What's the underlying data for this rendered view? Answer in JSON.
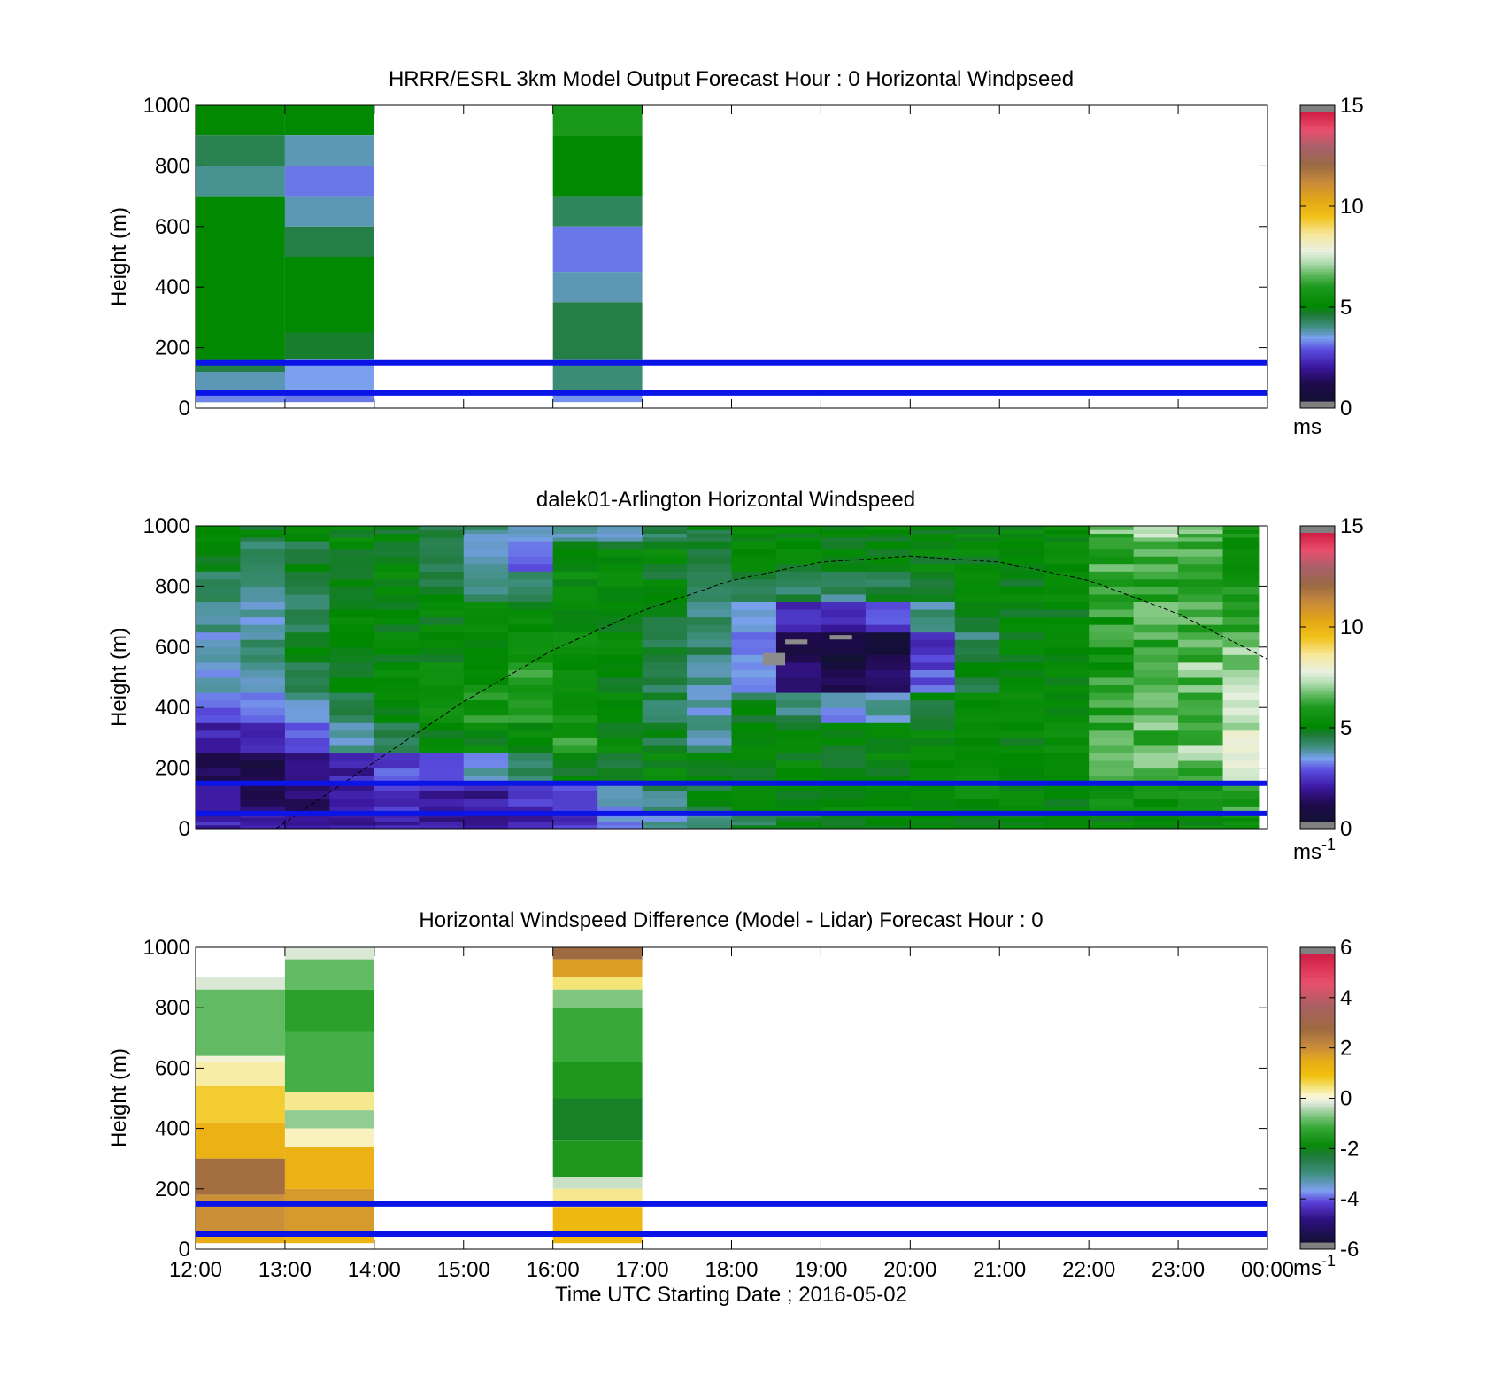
{
  "chart_data": [
    {
      "type": "heatmap",
      "title": "HRRR/ESRL 3km Model Output   Forecast Hour : 0 Horizontal Windpseed",
      "ylabel": "Height (m)",
      "xlabel": "",
      "ylim": [
        0,
        1000
      ],
      "yticks": [
        0,
        200,
        400,
        600,
        800,
        1000
      ],
      "xlim": [
        12,
        24
      ],
      "xticks": [
        12,
        13,
        14,
        15,
        16,
        17,
        18,
        19,
        20,
        21,
        22,
        23,
        24
      ],
      "show_xtick_labels": false,
      "colorbar": {
        "min": 0,
        "max": 15,
        "ticks": [
          "0",
          "5",
          "10",
          "15"
        ],
        "unit": "ms",
        "unit_sup": "",
        "palette": "speed"
      },
      "reference_lines": [
        150,
        50
      ],
      "columns": [
        {
          "x_start": 12,
          "x_end": 13,
          "cells": [
            {
              "y0": 900,
              "y1": 1000,
              "v": 5.0
            },
            {
              "y0": 800,
              "y1": 900,
              "v": 4.3
            },
            {
              "y0": 700,
              "y1": 800,
              "v": 3.8
            },
            {
              "y0": 20,
              "y1": 700,
              "v": 5.0
            },
            {
              "y0": 120,
              "y1": 160,
              "v": 4.4
            },
            {
              "y0": 60,
              "y1": 120,
              "v": 3.6
            },
            {
              "y0": 20,
              "y1": 60,
              "v": 3.1
            }
          ]
        },
        {
          "x_start": 13,
          "x_end": 14,
          "cells": [
            {
              "y0": 900,
              "y1": 1000,
              "v": 5.0
            },
            {
              "y0": 800,
              "y1": 900,
              "v": 3.6
            },
            {
              "y0": 700,
              "y1": 800,
              "v": 3.0
            },
            {
              "y0": 600,
              "y1": 700,
              "v": 3.6
            },
            {
              "y0": 500,
              "y1": 600,
              "v": 4.4
            },
            {
              "y0": 250,
              "y1": 500,
              "v": 5.0
            },
            {
              "y0": 160,
              "y1": 250,
              "v": 4.6
            },
            {
              "y0": 60,
              "y1": 160,
              "v": 3.3
            },
            {
              "y0": 20,
              "y1": 60,
              "v": 3.0
            }
          ]
        },
        {
          "x_start": 16,
          "x_end": 17,
          "cells": [
            {
              "y0": 900,
              "y1": 1000,
              "v": 5.8
            },
            {
              "y0": 800,
              "y1": 900,
              "v": 5.0
            },
            {
              "y0": 700,
              "y1": 800,
              "v": 5.0
            },
            {
              "y0": 600,
              "y1": 700,
              "v": 4.2
            },
            {
              "y0": 450,
              "y1": 600,
              "v": 3.0
            },
            {
              "y0": 350,
              "y1": 450,
              "v": 3.6
            },
            {
              "y0": 160,
              "y1": 350,
              "v": 4.4
            },
            {
              "y0": 60,
              "y1": 160,
              "v": 4.0
            },
            {
              "y0": 20,
              "y1": 60,
              "v": 3.2
            }
          ]
        }
      ]
    },
    {
      "type": "heatmap",
      "title": "dalek01-Arlington  Horizontal Windspeed",
      "ylabel": "Height (m)",
      "xlabel": "",
      "ylim": [
        0,
        1000
      ],
      "yticks": [
        0,
        200,
        400,
        600,
        800,
        1000
      ],
      "xlim": [
        12,
        24
      ],
      "xticks": [
        12,
        13,
        14,
        15,
        16,
        17,
        18,
        19,
        20,
        21,
        22,
        23,
        24
      ],
      "show_xtick_labels": false,
      "colorbar": {
        "min": 0,
        "max": 15,
        "ticks": [
          "0",
          "5",
          "10",
          "15"
        ],
        "unit": "ms",
        "unit_sup": "-1",
        "palette": "speed"
      },
      "reference_lines": [
        150,
        50
      ],
      "data_end_x": 23.9,
      "grid_rows": [
        0,
        50,
        150,
        250,
        350,
        450,
        550,
        650,
        750,
        850,
        950,
        1000
      ],
      "grid_cols": [
        12,
        12.5,
        13,
        13.5,
        14,
        14.5,
        15,
        15.5,
        16,
        16.5,
        17,
        17.5,
        18,
        18.5,
        19,
        19.5,
        20,
        20.5,
        21,
        21.5,
        22,
        22.5,
        23,
        23.5,
        23.9
      ],
      "grid_values": [
        [
          2.0,
          1.8,
          1.6,
          1.7,
          2.0,
          1.7,
          1.4,
          1.8,
          2.3,
          3.1,
          3.6,
          4.0,
          4.4,
          4.6,
          4.8,
          4.9,
          4.8,
          4.7,
          4.8,
          5.0,
          5.0,
          5.2,
          5.0,
          5.4
        ],
        [
          1.5,
          1.2,
          1.4,
          1.8,
          2.2,
          2.0,
          1.8,
          2.2,
          2.7,
          3.4,
          4.1,
          4.7,
          4.8,
          4.9,
          5.0,
          5.0,
          5.0,
          5.1,
          5.0,
          5.0,
          5.4,
          5.6,
          5.6,
          6.2
        ],
        [
          1.0,
          0.8,
          1.2,
          1.9,
          2.6,
          3.0,
          3.4,
          4.2,
          4.6,
          4.8,
          5.0,
          5.0,
          5.0,
          5.0,
          5.0,
          5.0,
          5.0,
          5.0,
          5.0,
          5.0,
          6.0,
          6.3,
          6.6,
          7.2
        ],
        [
          2.0,
          1.8,
          2.6,
          3.6,
          4.4,
          4.8,
          5.0,
          5.6,
          5.8,
          5.0,
          4.6,
          3.8,
          4.8,
          5.0,
          5.0,
          5.0,
          5.0,
          5.0,
          5.0,
          5.2,
          6.1,
          6.4,
          6.8,
          7.3
        ],
        [
          3.0,
          3.2,
          3.8,
          4.2,
          4.8,
          5.2,
          5.8,
          6.0,
          5.9,
          5.2,
          4.4,
          3.6,
          4.6,
          4.0,
          3.4,
          3.6,
          4.6,
          5.0,
          5.0,
          5.0,
          6.0,
          6.3,
          6.8,
          7.2
        ],
        [
          3.4,
          3.6,
          4.4,
          4.8,
          5.0,
          5.4,
          5.6,
          5.8,
          5.6,
          5.0,
          4.4,
          3.8,
          3.4,
          1.2,
          0.8,
          1.0,
          2.6,
          4.6,
          5.0,
          5.0,
          5.8,
          6.2,
          6.7,
          7.0
        ],
        [
          3.6,
          3.8,
          4.6,
          5.0,
          5.0,
          5.0,
          5.2,
          5.4,
          5.2,
          5.0,
          4.6,
          4.2,
          3.2,
          0.7,
          0.4,
          0.6,
          2.2,
          4.2,
          5.0,
          5.0,
          5.6,
          6.1,
          6.5,
          6.6
        ],
        [
          4.0,
          3.4,
          4.4,
          5.0,
          5.0,
          5.0,
          5.0,
          5.2,
          5.2,
          5.0,
          4.6,
          4.0,
          3.4,
          2.0,
          1.8,
          2.4,
          3.8,
          4.6,
          5.0,
          5.0,
          5.8,
          6.2,
          6.4,
          6.4
        ],
        [
          4.4,
          3.8,
          4.4,
          5.0,
          5.0,
          4.6,
          4.0,
          4.4,
          5.2,
          5.2,
          4.8,
          4.4,
          4.6,
          4.2,
          4.0,
          4.4,
          4.8,
          5.0,
          5.0,
          5.0,
          6.0,
          6.3,
          6.2,
          6.1
        ],
        [
          4.6,
          4.0,
          4.6,
          5.0,
          5.0,
          4.0,
          3.4,
          3.0,
          4.8,
          5.0,
          5.0,
          4.8,
          5.0,
          5.0,
          5.0,
          5.0,
          5.0,
          5.0,
          5.0,
          5.0,
          6.2,
          6.6,
          6.2,
          5.8
        ],
        [
          4.8,
          4.8,
          5.0,
          5.0,
          4.8,
          4.4,
          3.8,
          3.2,
          3.6,
          3.4,
          4.2,
          4.6,
          5.0,
          5.0,
          5.0,
          5.0,
          5.0,
          5.0,
          5.0,
          5.0,
          6.6,
          7.0,
          6.4,
          6.0
        ]
      ],
      "missing_cells": [
        {
          "x0": 18.35,
          "x1": 18.6,
          "y0": 540,
          "y1": 580
        },
        {
          "x0": 18.6,
          "x1": 18.85,
          "y0": 610,
          "y1": 625
        },
        {
          "x0": 19.1,
          "x1": 19.35,
          "y0": 625,
          "y1": 640
        }
      ],
      "curve": {
        "points": [
          [
            12.9,
            0
          ],
          [
            13.5,
            120
          ],
          [
            14,
            220
          ],
          [
            15,
            420
          ],
          [
            16,
            590
          ],
          [
            17,
            720
          ],
          [
            18,
            820
          ],
          [
            19,
            880
          ],
          [
            20,
            900
          ],
          [
            21,
            880
          ],
          [
            22,
            820
          ],
          [
            23,
            710
          ],
          [
            24,
            560
          ]
        ]
      }
    },
    {
      "type": "heatmap",
      "title": "Horizontal Windspeed Difference (Model - Lidar) Forecast Hour : 0",
      "ylabel": "Height (m)",
      "xlabel": "Time UTC  Starting Date ; 2016-05-02",
      "ylim": [
        0,
        1000
      ],
      "yticks": [
        0,
        200,
        400,
        600,
        800,
        1000
      ],
      "xlim": [
        12,
        24
      ],
      "xticks": [
        12,
        13,
        14,
        15,
        16,
        17,
        18,
        19,
        20,
        21,
        22,
        23,
        24
      ],
      "xtick_labels": [
        "12:00",
        "13:00",
        "14:00",
        "15:00",
        "16:00",
        "17:00",
        "18:00",
        "19:00",
        "20:00",
        "21:00",
        "22:00",
        "23:00",
        "00:00"
      ],
      "show_xtick_labels": true,
      "colorbar": {
        "min": -6,
        "max": 6,
        "ticks": [
          "-6",
          "-4",
          "-2",
          "0",
          "2",
          "4",
          "6"
        ],
        "unit": "ms",
        "unit_sup": "-1",
        "palette": "diff"
      },
      "reference_lines": [
        150,
        50
      ],
      "columns": [
        {
          "x_start": 12,
          "x_end": 13,
          "cells": [
            {
              "y0": 860,
              "y1": 900,
              "v": -0.2
            },
            {
              "y0": 640,
              "y1": 860,
              "v": -0.9
            },
            {
              "y0": 620,
              "y1": 640,
              "v": 0.0
            },
            {
              "y0": 540,
              "y1": 620,
              "v": 0.3
            },
            {
              "y0": 420,
              "y1": 540,
              "v": 0.8
            },
            {
              "y0": 300,
              "y1": 420,
              "v": 1.4
            },
            {
              "y0": 180,
              "y1": 300,
              "v": 2.8
            },
            {
              "y0": 60,
              "y1": 180,
              "v": 2.1
            },
            {
              "y0": 20,
              "y1": 60,
              "v": 1.5
            }
          ]
        },
        {
          "x_start": 13,
          "x_end": 14,
          "cells": [
            {
              "y0": 960,
              "y1": 1000,
              "v": -0.2
            },
            {
              "y0": 860,
              "y1": 960,
              "v": -0.9
            },
            {
              "y0": 720,
              "y1": 860,
              "v": -1.4
            },
            {
              "y0": 520,
              "y1": 720,
              "v": -1.1
            },
            {
              "y0": 460,
              "y1": 520,
              "v": 0.4
            },
            {
              "y0": 400,
              "y1": 460,
              "v": -0.6
            },
            {
              "y0": 340,
              "y1": 400,
              "v": 0.2
            },
            {
              "y0": 200,
              "y1": 340,
              "v": 1.4
            },
            {
              "y0": 60,
              "y1": 200,
              "v": 1.9
            },
            {
              "y0": 20,
              "y1": 60,
              "v": 1.3
            }
          ]
        },
        {
          "x_start": 16,
          "x_end": 17,
          "cells": [
            {
              "y0": 960,
              "y1": 1000,
              "v": 2.9
            },
            {
              "y0": 900,
              "y1": 960,
              "v": 1.8
            },
            {
              "y0": 860,
              "y1": 900,
              "v": 0.5
            },
            {
              "y0": 800,
              "y1": 860,
              "v": -0.7
            },
            {
              "y0": 620,
              "y1": 800,
              "v": -1.2
            },
            {
              "y0": 500,
              "y1": 620,
              "v": -1.6
            },
            {
              "y0": 360,
              "y1": 500,
              "v": -2.2
            },
            {
              "y0": 240,
              "y1": 360,
              "v": -1.6
            },
            {
              "y0": 200,
              "y1": 240,
              "v": -0.3
            },
            {
              "y0": 140,
              "y1": 200,
              "v": 0.4
            },
            {
              "y0": 20,
              "y1": 140,
              "v": 1.2
            }
          ]
        }
      ]
    }
  ]
}
